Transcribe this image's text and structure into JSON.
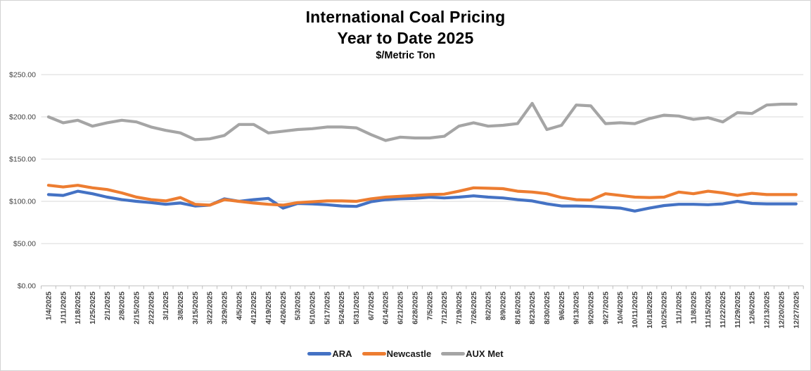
{
  "title": {
    "line1": "International Coal Pricing",
    "line2": "Year to Date 2025",
    "units": "$/Metric Ton"
  },
  "colors": {
    "ara": "#4472C4",
    "newcastle": "#ED7D31",
    "aux_met": "#A5A5A5",
    "gridline": "#D9D9D9",
    "axis_line": "#BFBFBF",
    "tick_label": "#404040"
  },
  "chart_data": {
    "type": "line",
    "title": "International Coal Pricing Year to Date 2025",
    "ylabel": "$/Metric Ton",
    "xlabel": "",
    "grid": true,
    "legend_position": "bottom",
    "ylim": [
      0,
      250
    ],
    "ytick_step": 50,
    "y_tick_labels": [
      "$250.00",
      "$200.00",
      "$150.00",
      "$100.00",
      "$50.00",
      "$0.00"
    ],
    "x": [
      "1/4/2025",
      "1/11/2025",
      "1/18/2025",
      "1/25/2025",
      "2/1/2025",
      "2/8/2025",
      "2/15/2025",
      "2/22/2025",
      "3/1/2025",
      "3/8/2025",
      "3/15/2025",
      "3/22/2025",
      "3/29/2025",
      "4/5/2025",
      "4/12/2025",
      "4/19/2025",
      "4/26/2025",
      "5/3/2025",
      "5/10/2025",
      "5/17/2025",
      "5/24/2025",
      "5/31/2025",
      "6/7/2025",
      "6/14/2025",
      "6/21/2025",
      "6/28/2025",
      "7/5/2025",
      "7/12/2025",
      "7/19/2025",
      "7/26/2025",
      "8/2/2025",
      "8/9/2025",
      "8/16/2025",
      "8/23/2025",
      "8/30/2025",
      "9/6/2025",
      "9/13/2025",
      "9/20/2025",
      "9/27/2025",
      "10/4/2025",
      "10/11/2025",
      "10/18/2025",
      "10/25/2025",
      "11/1/2025",
      "11/8/2025",
      "11/15/2025",
      "11/22/2025",
      "11/29/2025",
      "12/6/2025",
      "12/13/2025",
      "12/20/2025",
      "12/27/2025"
    ],
    "series": [
      {
        "name": "ARA",
        "color": "#4472C4",
        "values": [
          108,
          107,
          112,
          109,
          105,
          102,
          100,
          98.5,
          96.5,
          98,
          94.5,
          95.5,
          103,
          100,
          102,
          103.5,
          92,
          97.5,
          97,
          96,
          94.5,
          94,
          99.5,
          102,
          103,
          103.5,
          105,
          104,
          105,
          106.5,
          105,
          104,
          102,
          100.5,
          97,
          94.5,
          94.5,
          94,
          93,
          92,
          88.5,
          92,
          95,
          96.5,
          96.5,
          96,
          97,
          100,
          97.5,
          97,
          97,
          97
        ]
      },
      {
        "name": "Newcastle",
        "color": "#ED7D31",
        "values": [
          119,
          117,
          119,
          116,
          114,
          110,
          105,
          102,
          100.5,
          104.5,
          96.5,
          95.5,
          102,
          100,
          98,
          96.5,
          95.5,
          98.5,
          99.5,
          100.5,
          100.5,
          100,
          103,
          105,
          106,
          107,
          108,
          108.5,
          112,
          116,
          115.5,
          115,
          112,
          111,
          109,
          104.5,
          102,
          101.5,
          109,
          107,
          105,
          104.5,
          105,
          111,
          109,
          112,
          110,
          107,
          109.5,
          108,
          108,
          108
        ]
      },
      {
        "name": "AUX Met",
        "color": "#A5A5A5",
        "values": [
          200,
          193,
          196,
          189,
          193,
          196,
          194,
          188,
          184,
          181,
          173,
          174,
          178,
          191,
          191,
          181,
          183,
          185,
          186,
          188,
          188,
          187,
          179,
          172,
          176,
          175,
          175,
          177,
          189,
          193,
          189,
          190,
          192,
          216,
          185,
          190,
          214,
          213,
          192,
          193,
          192,
          198,
          202,
          201,
          197,
          199,
          194,
          205,
          204,
          214,
          215,
          215
        ]
      }
    ]
  }
}
